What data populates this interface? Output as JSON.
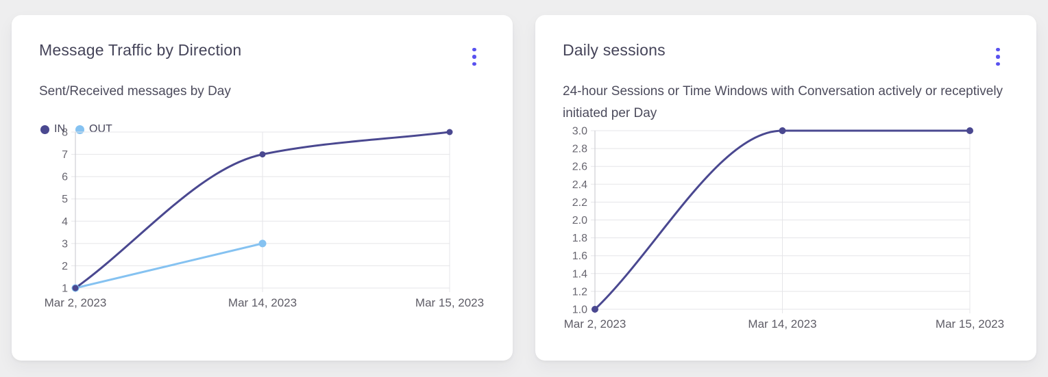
{
  "colors": {
    "background": "#eeeeef",
    "card": "#ffffff",
    "accent": "#5952ef",
    "grid": "#e5e5e8",
    "axis": "#cfcfd4",
    "ytick_text": "#67656f",
    "xtick_text": "#5e5c66"
  },
  "cards": [
    {
      "title": "Message Traffic by Direction",
      "subtitle": "Sent/Received messages by Day",
      "menu_icon": "kebab-menu-icon",
      "chart_data": {
        "type": "line",
        "title": "Message Traffic by Direction",
        "subtitle": "Sent/Received messages by Day",
        "categories": [
          "Mar 2, 2023",
          "Mar 14, 2023",
          "Mar 15, 2023"
        ],
        "series": [
          {
            "name": "IN",
            "color": "#4a4890",
            "values": [
              1,
              7,
              8
            ],
            "point_radius": 4.5
          },
          {
            "name": "OUT",
            "color": "#85c2f1",
            "values": [
              1,
              3,
              null
            ],
            "point_radius": 5.5
          }
        ],
        "ylim": [
          1,
          8
        ],
        "yticks": [
          1,
          2,
          3,
          4,
          5,
          6,
          7,
          8
        ],
        "ytick_labels": [
          "1",
          "2",
          "3",
          "4",
          "5",
          "6",
          "7",
          "8"
        ],
        "xlabel": "",
        "ylabel": "",
        "curve": "monotone",
        "grid": true,
        "legend_position": "top-left"
      }
    },
    {
      "title": "Daily sessions",
      "subtitle": "24-hour Sessions or Time Windows with Conversation actively or receptively initiated per Day",
      "menu_icon": "kebab-menu-icon",
      "chart_data": {
        "type": "line",
        "title": "Daily sessions",
        "subtitle": "24-hour Sessions or Time Windows with Conversation actively or receptively initiated per Day",
        "categories": [
          "Mar 2, 2023",
          "Mar 14, 2023",
          "Mar 15, 2023"
        ],
        "series": [
          {
            "name": "Sessions",
            "color": "#4a4890",
            "values": [
              1,
              3,
              3
            ],
            "point_radius": 5
          }
        ],
        "ylim": [
          1,
          3
        ],
        "yticks": [
          1,
          1.2,
          1.4,
          1.6,
          1.8,
          2,
          2.2,
          2.4,
          2.6,
          2.8,
          3
        ],
        "ytick_labels": [
          "1.0",
          "1.2",
          "1.4",
          "1.6",
          "1.8",
          "2.0",
          "2.2",
          "2.4",
          "2.6",
          "2.8",
          "3.0"
        ],
        "xlabel": "",
        "ylabel": "",
        "curve": "monotone",
        "grid": true,
        "legend_position": "none"
      }
    }
  ]
}
